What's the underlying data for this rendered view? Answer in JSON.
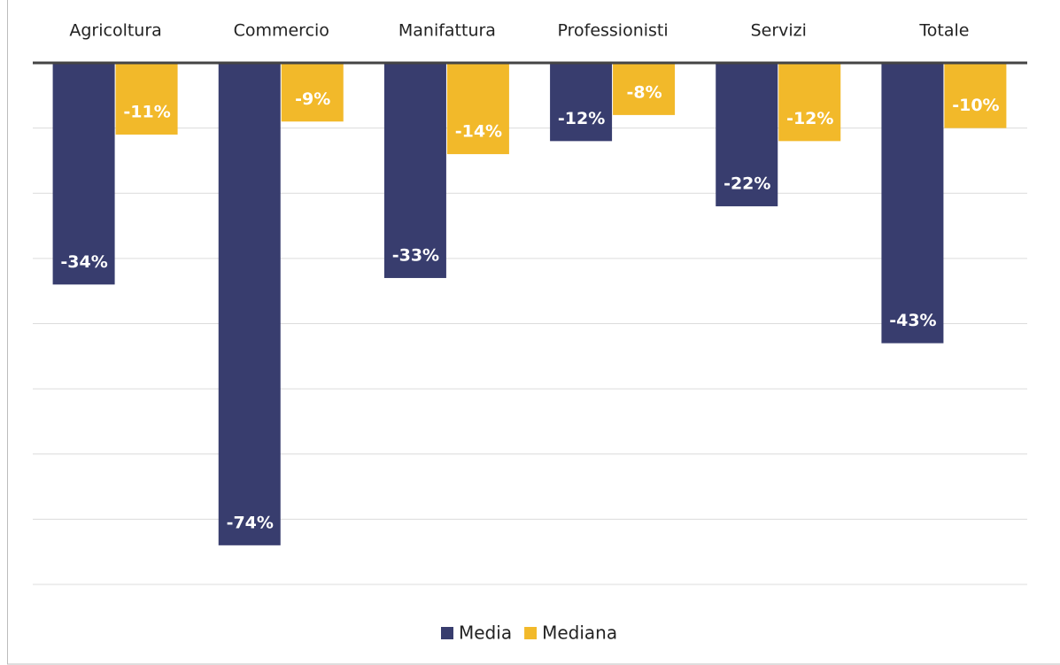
{
  "chart_data": {
    "type": "bar",
    "categories": [
      "Agricoltura",
      "Commercio",
      "Manifattura",
      "Professionisti",
      "Servizi",
      "Totale"
    ],
    "series": [
      {
        "name": "Media",
        "color": "#383d6e",
        "values": [
          -34,
          -74,
          -33,
          -12,
          -22,
          -43
        ],
        "value_labels": [
          "-34%",
          "-74%",
          "-33%",
          "-12%",
          "-22%",
          "-43%"
        ]
      },
      {
        "name": "Mediana",
        "color": "#f2b92a",
        "values": [
          -11,
          -9,
          -14,
          -8,
          -12,
          -10
        ],
        "value_labels": [
          "-11%",
          "-9%",
          "-14%",
          "-8%",
          "-12%",
          "-10%"
        ]
      }
    ],
    "ylim": [
      -80,
      0
    ],
    "yticks": [
      0,
      -10,
      -20,
      -30,
      -40,
      -50,
      -60,
      -70,
      -80
    ],
    "grid": true,
    "legend": "bottom"
  }
}
